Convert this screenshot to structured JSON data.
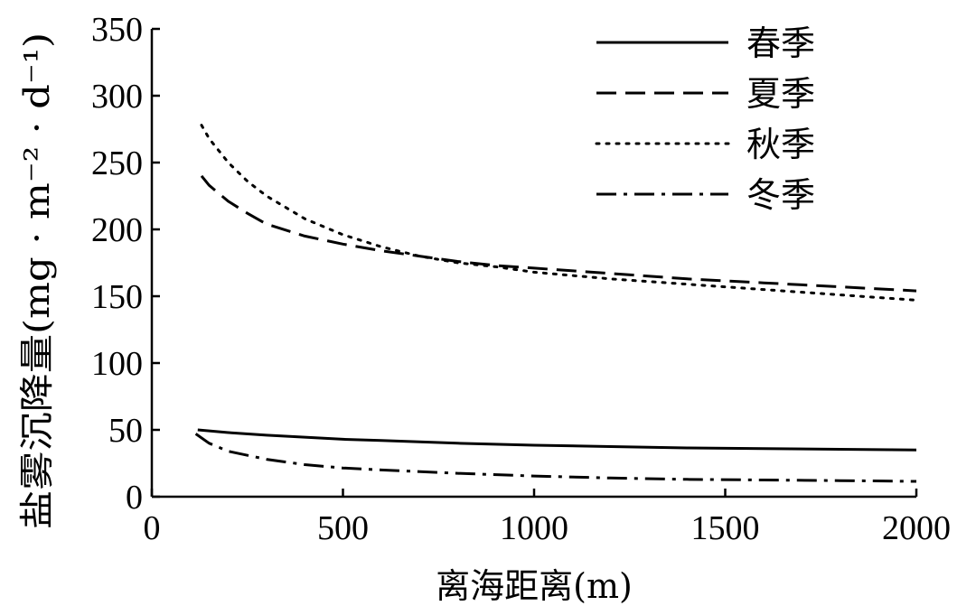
{
  "chart_data": {
    "type": "line",
    "xlabel": "离海距离(m)",
    "ylabel": "盐雾沉降量(mg · m⁻² · d⁻¹)",
    "xlim": [
      0,
      2000
    ],
    "ylim": [
      0,
      350
    ],
    "x_ticks": [
      0,
      500,
      1000,
      1500,
      2000
    ],
    "y_ticks": [
      0,
      50,
      100,
      150,
      200,
      250,
      300,
      350
    ],
    "grid": false,
    "legend_position": "top-right",
    "series": [
      {
        "name": "春季",
        "line_style": "solid",
        "x": [
          120,
          200,
          300,
          400,
          500,
          600,
          800,
          1000,
          1200,
          1400,
          1600,
          1800,
          2000
        ],
        "y": [
          50,
          48,
          46,
          44.5,
          43,
          42,
          40,
          38.5,
          37.5,
          36.5,
          36,
          35.5,
          35
        ]
      },
      {
        "name": "夏季",
        "line_style": "dashed",
        "x": [
          130,
          150,
          200,
          250,
          300,
          400,
          500,
          600,
          700,
          800,
          900,
          1000,
          1200,
          1400,
          1600,
          1800,
          2000
        ],
        "y": [
          240,
          233,
          221,
          212,
          204,
          195,
          189,
          184,
          180,
          176,
          173,
          171,
          167,
          163,
          160,
          157,
          154
        ]
      },
      {
        "name": "秋季",
        "line_style": "dotted",
        "x": [
          130,
          150,
          200,
          250,
          300,
          400,
          500,
          600,
          700,
          800,
          900,
          1000,
          1200,
          1400,
          1600,
          1800,
          2000
        ],
        "y": [
          278,
          268,
          250,
          236,
          225,
          208,
          196,
          187,
          180,
          175,
          172,
          168,
          163,
          159,
          155,
          151,
          147
        ]
      },
      {
        "name": "冬季",
        "line_style": "dash-dot",
        "x": [
          115,
          150,
          200,
          300,
          400,
          500,
          600,
          800,
          1000,
          1200,
          1400,
          1600,
          1800,
          2000
        ],
        "y": [
          47,
          40,
          34,
          28,
          24,
          21.5,
          20,
          17.5,
          15.5,
          14,
          13,
          12.5,
          12,
          11.5
        ]
      }
    ]
  }
}
